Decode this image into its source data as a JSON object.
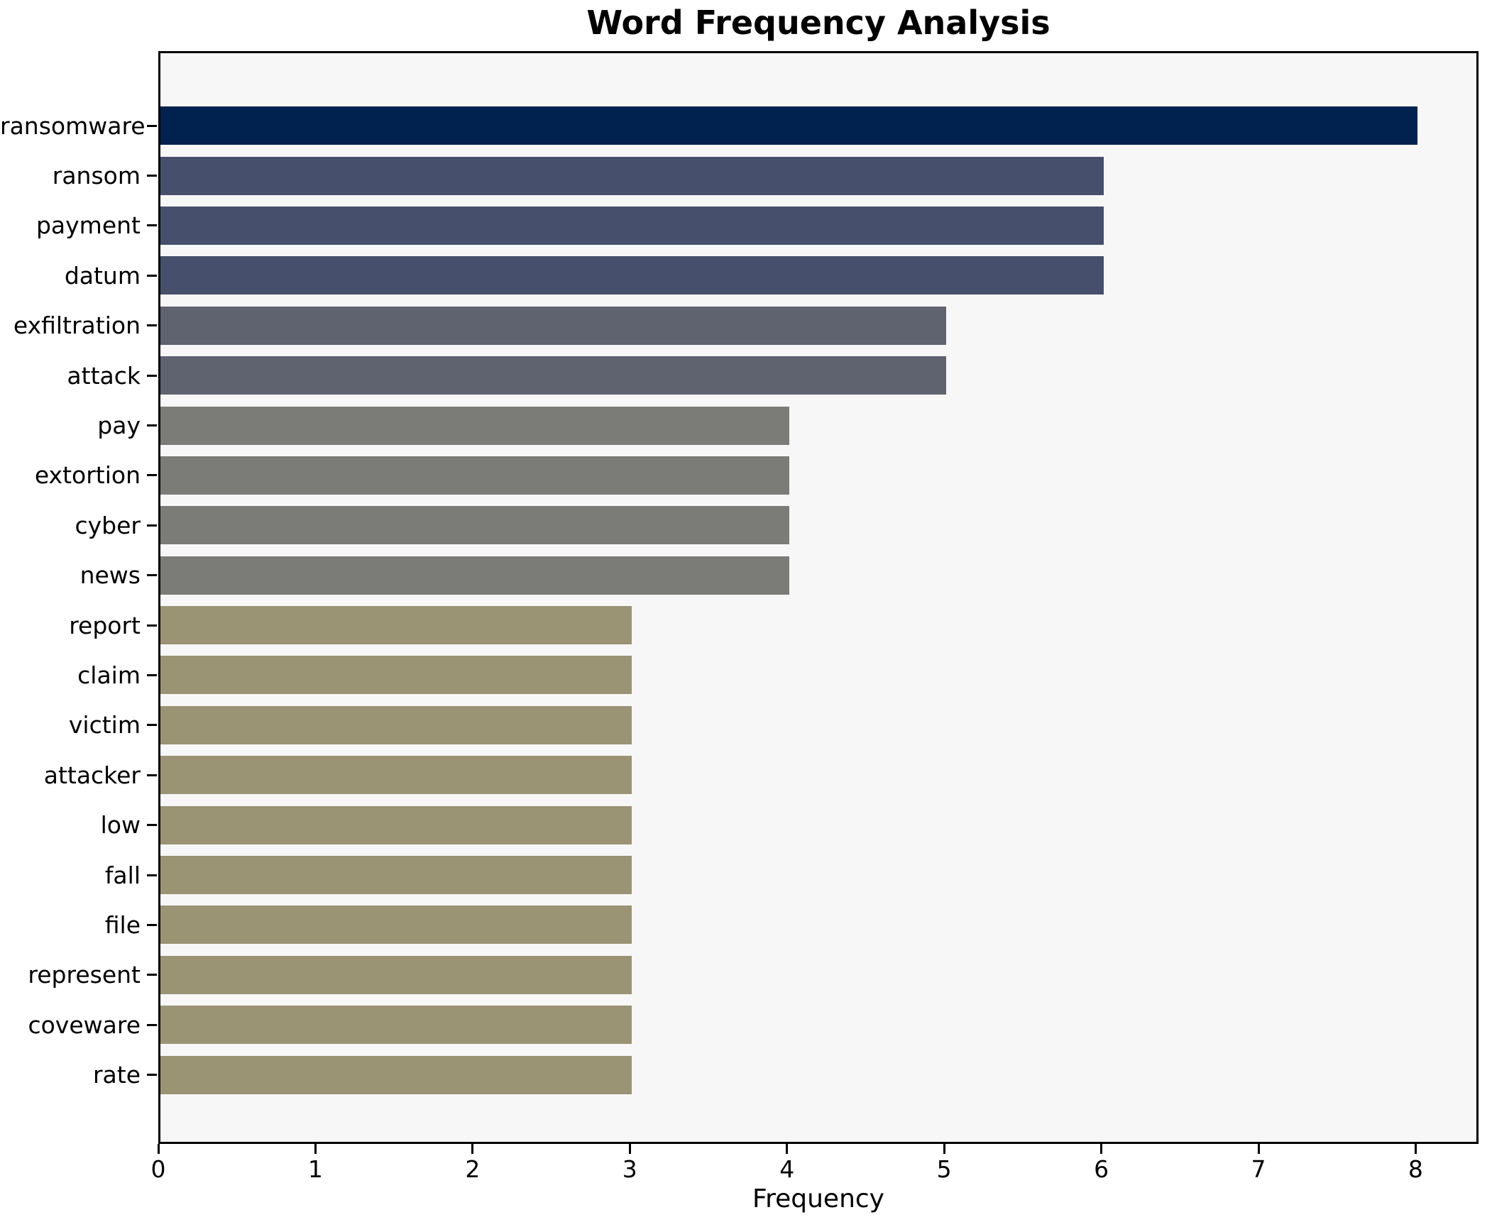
{
  "chart_data": {
    "type": "bar",
    "orientation": "horizontal",
    "title": "Word Frequency Analysis",
    "xlabel": "Frequency",
    "ylabel": "",
    "categories": [
      "ransomware",
      "ransom",
      "payment",
      "datum",
      "exfiltration",
      "attack",
      "pay",
      "extortion",
      "cyber",
      "news",
      "report",
      "claim",
      "victim",
      "attacker",
      "low",
      "fall",
      "file",
      "represent",
      "coveware",
      "rate"
    ],
    "values": [
      8,
      6,
      6,
      6,
      5,
      5,
      4,
      4,
      4,
      4,
      3,
      3,
      3,
      3,
      3,
      3,
      3,
      3,
      3,
      3
    ],
    "bar_colors": [
      "#01214f",
      "#46506c",
      "#46506c",
      "#46506c",
      "#5f6370",
      "#5f6370",
      "#7b7b78",
      "#7b7b78",
      "#7b7b78",
      "#7b7b78",
      "#9a9374",
      "#9a9374",
      "#9a9374",
      "#9a9374",
      "#9a9374",
      "#9a9374",
      "#9a9374",
      "#9a9374",
      "#9a9374",
      "#9a9374"
    ],
    "xlim": [
      0,
      8.4
    ],
    "xticks": [
      "0",
      "1",
      "2",
      "3",
      "4",
      "5",
      "6",
      "7",
      "8"
    ],
    "grid": false,
    "legend": "none",
    "colors": {
      "figure_background": "#ffffff",
      "axes_background": "#f7f7f7",
      "spine_color": "#000000",
      "text_color": "#000000"
    }
  }
}
